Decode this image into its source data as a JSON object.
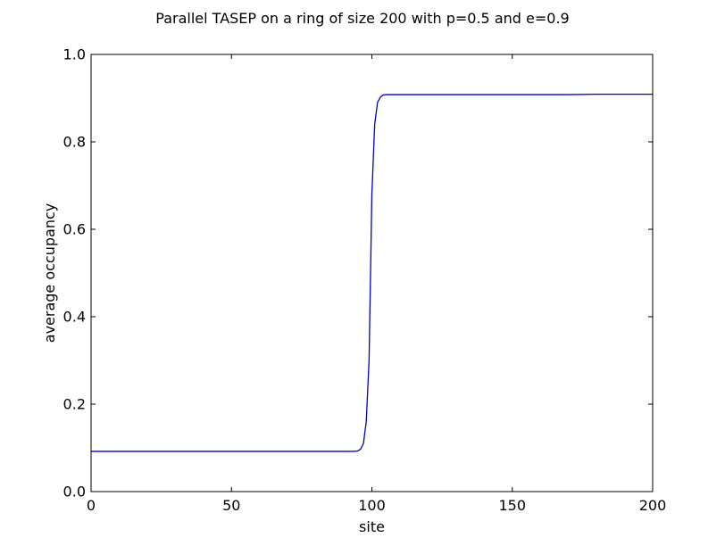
{
  "chart_data": {
    "type": "line",
    "title": "Parallel TASEP on a ring of size 200 with p=0.5 and e=0.9",
    "xlabel": "site",
    "ylabel": "average occupancy",
    "xlim": [
      0,
      200
    ],
    "ylim": [
      0.0,
      1.0
    ],
    "xticks": [
      0,
      50,
      100,
      150,
      200
    ],
    "xtick_labels": [
      "0",
      "50",
      "100",
      "150",
      "200"
    ],
    "yticks": [
      0.0,
      0.2,
      0.4,
      0.6,
      0.8,
      1.0
    ],
    "ytick_labels": [
      "0.0",
      "0.2",
      "0.4",
      "0.6",
      "0.8",
      "1.0"
    ],
    "grid": false,
    "series": [
      {
        "color": "#0000cc",
        "x": [
          0,
          10,
          20,
          30,
          40,
          50,
          60,
          70,
          80,
          90,
          94,
          95,
          96,
          97,
          98,
          99,
          100,
          101,
          102,
          103,
          104,
          105,
          107,
          110,
          120,
          130,
          140,
          150,
          160,
          170,
          180,
          190,
          200
        ],
        "y": [
          0.092,
          0.092,
          0.092,
          0.092,
          0.092,
          0.092,
          0.092,
          0.092,
          0.092,
          0.092,
          0.092,
          0.093,
          0.097,
          0.11,
          0.16,
          0.3,
          0.68,
          0.84,
          0.89,
          0.902,
          0.907,
          0.908,
          0.908,
          0.908,
          0.908,
          0.908,
          0.908,
          0.908,
          0.908,
          0.908,
          0.909,
          0.909,
          0.909
        ]
      }
    ]
  }
}
